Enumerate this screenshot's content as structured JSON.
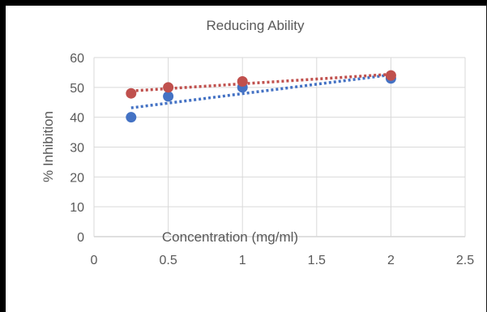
{
  "chart_data": {
    "type": "scatter",
    "title": "Reducing Ability",
    "xlabel": "Concentration (mg/ml)",
    "ylabel": "% Inhibition",
    "xlim": [
      0,
      2.5
    ],
    "ylim": [
      0,
      60
    ],
    "xticks": [
      "0",
      "0.5",
      "1",
      "1.5",
      "2",
      "2.5"
    ],
    "yticks": [
      "0",
      "10",
      "20",
      "30",
      "40",
      "50",
      "60"
    ],
    "grid": true,
    "legend": "none",
    "trendlines": "linear, dotted",
    "series": [
      {
        "color": "#4472c4",
        "x": [
          0.25,
          0.5,
          1,
          2
        ],
        "y": [
          40,
          47,
          50,
          53
        ]
      },
      {
        "color": "#c0504d",
        "x": [
          0.25,
          0.5,
          1,
          2
        ],
        "y": [
          48,
          50,
          52,
          54
        ]
      }
    ]
  }
}
